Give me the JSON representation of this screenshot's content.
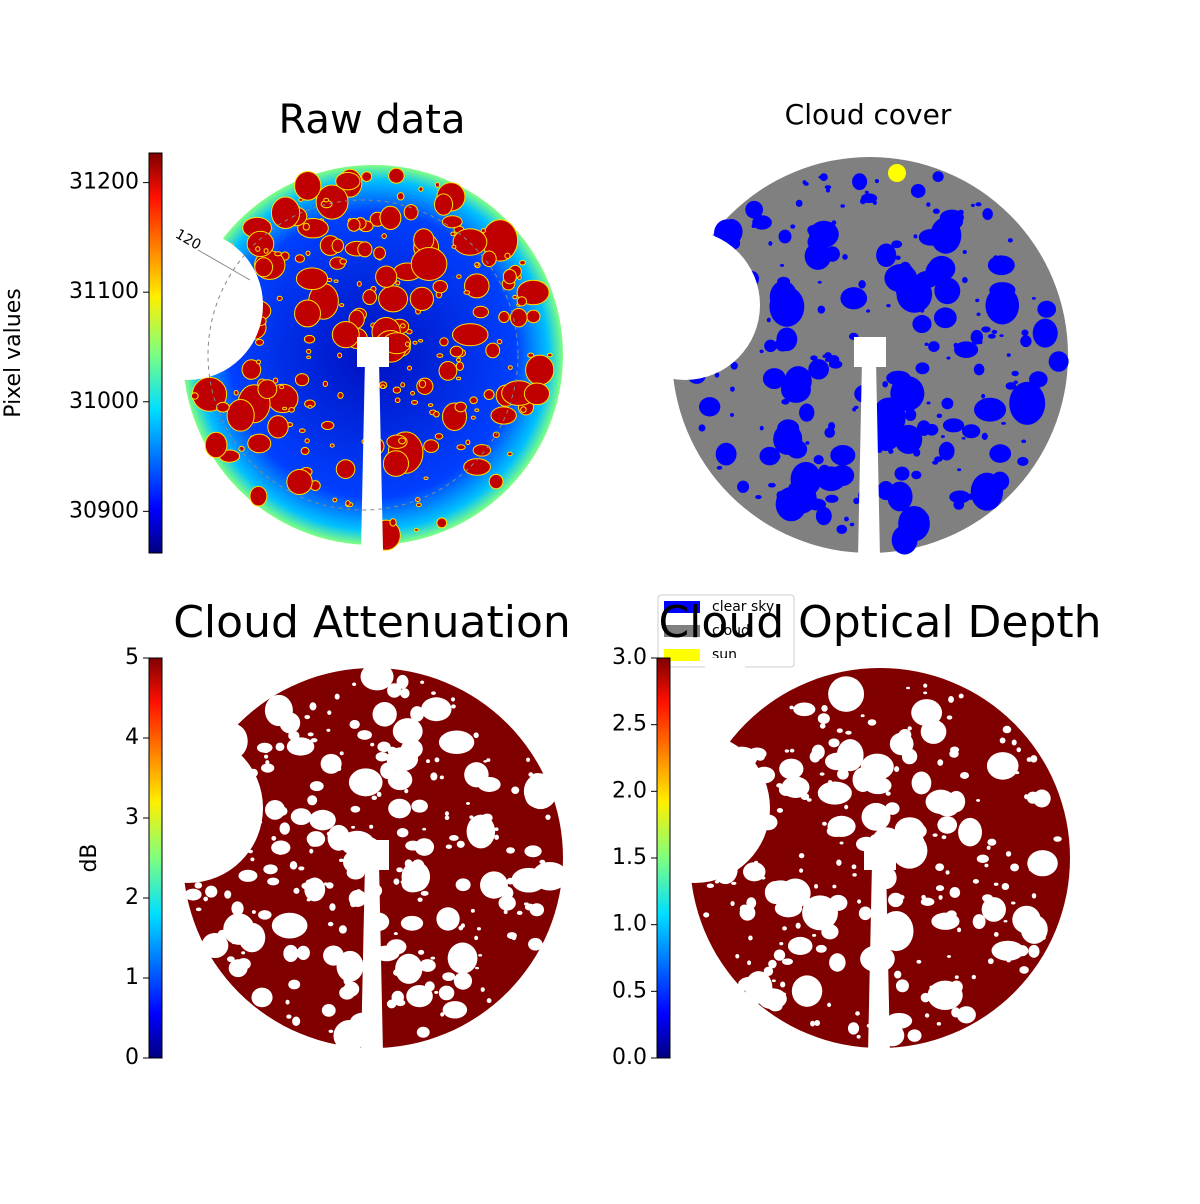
{
  "chart_data": [
    {
      "type": "image",
      "title": "Raw data",
      "ylabel": "Pixel values",
      "colormap": "jet",
      "ylim": [
        30862,
        31227
      ],
      "yticks": [
        30900,
        31000,
        31100,
        31200
      ],
      "annotations": [
        "120"
      ]
    },
    {
      "type": "image",
      "title": "Cloud cover",
      "series": [
        {
          "name": "clear sky",
          "color": "#0000ff"
        },
        {
          "name": "cloud",
          "color": "#808080"
        },
        {
          "name": "sun",
          "color": "#ffff00"
        }
      ]
    },
    {
      "type": "image",
      "title": "Cloud Attenuation",
      "ylabel": "dB",
      "colormap": "jet",
      "ylim": [
        0,
        5
      ],
      "yticks": [
        0,
        1,
        2,
        3,
        4,
        5
      ]
    },
    {
      "type": "image",
      "title": "Cloud Optical Depth",
      "colormap": "jet",
      "ylim": [
        0,
        3
      ],
      "yticks": [
        {
          "value": 0,
          "label": "0.0"
        },
        {
          "value": 0.5,
          "label": "0.5"
        },
        {
          "value": 1,
          "label": "1.0"
        },
        {
          "value": 1.5,
          "label": "1.5"
        },
        {
          "value": 2,
          "label": "2.0"
        },
        {
          "value": 2.5,
          "label": "2.5"
        },
        {
          "value": 3,
          "label": "3.0"
        }
      ]
    }
  ]
}
